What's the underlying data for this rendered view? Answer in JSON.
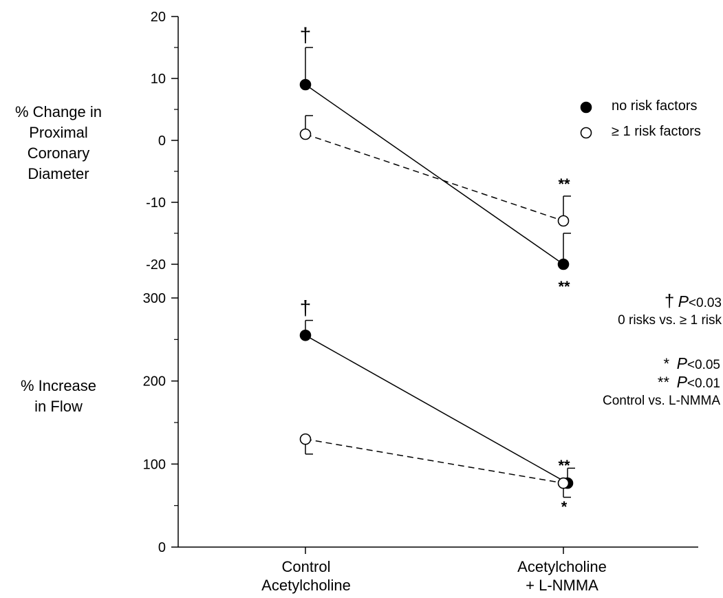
{
  "chart_data": [
    {
      "type": "line",
      "ylabel": "% Change in Proximal Coronary Diameter",
      "ylabel_lines": [
        "% Change in",
        "Proximal",
        "Coronary",
        "Diameter"
      ],
      "categories": [
        "Control Acetylcholine",
        "Acetylcholine + L-NMMA"
      ],
      "ylim": [
        -20,
        20
      ],
      "yticks": [
        -20,
        -10,
        0,
        10,
        20
      ],
      "grid": false,
      "legend": "top-right",
      "series": [
        {
          "name": "no risk factors",
          "marker": "filled-circle",
          "line": "solid",
          "values": [
            9,
            -20
          ],
          "error_upper": [
            15,
            -15
          ],
          "symbols": [
            "†",
            "**"
          ]
        },
        {
          "name": "≥ 1 risk factors",
          "marker": "open-circle",
          "line": "dashed",
          "values": [
            1,
            -13
          ],
          "error_upper": [
            4,
            -9
          ],
          "symbols": [
            "",
            "**"
          ]
        }
      ]
    },
    {
      "type": "line",
      "ylabel": "% Increase in Flow",
      "ylabel_lines": [
        "% Increase",
        "in Flow"
      ],
      "categories": [
        "Control Acetylcholine",
        "Acetylcholine + L-NMMA"
      ],
      "ylim": [
        0,
        300
      ],
      "yticks": [
        0,
        100,
        200,
        300
      ],
      "grid": false,
      "series": [
        {
          "name": "no risk factors",
          "marker": "filled-circle",
          "line": "solid",
          "values": [
            255,
            77
          ],
          "error_upper": [
            273,
            95
          ],
          "symbols": [
            "†",
            "*"
          ]
        },
        {
          "name": "≥ 1 risk factors",
          "marker": "open-circle",
          "line": "dashed",
          "values": [
            130,
            77
          ],
          "error_lower": [
            112,
            60
          ],
          "symbols": [
            "",
            "**"
          ]
        }
      ]
    }
  ],
  "xaxis": {
    "cat1_lines": [
      "Control",
      "Acetylcholine"
    ],
    "cat2_lines": [
      "Acetylcholine",
      "+ L-NMMA"
    ]
  },
  "legend": {
    "items": [
      {
        "label": "no risk factors",
        "marker": "filled-circle"
      },
      {
        "label": "≥ 1 risk factors",
        "marker": "open-circle"
      }
    ]
  },
  "notes": {
    "dagger_symbol": "†",
    "dagger_p": "P",
    "dagger_val": "<0.03",
    "dagger_desc": "0 risks vs. ≥ 1 risk",
    "one_star": "*",
    "one_star_p": "P",
    "one_star_val": "<0.05",
    "two_star": "**",
    "two_star_p": "P",
    "two_star_val": "<0.01",
    "star_desc": "Control vs. L-NMMA"
  },
  "colors": {
    "ink": "#000000",
    "background": "#ffffff"
  }
}
